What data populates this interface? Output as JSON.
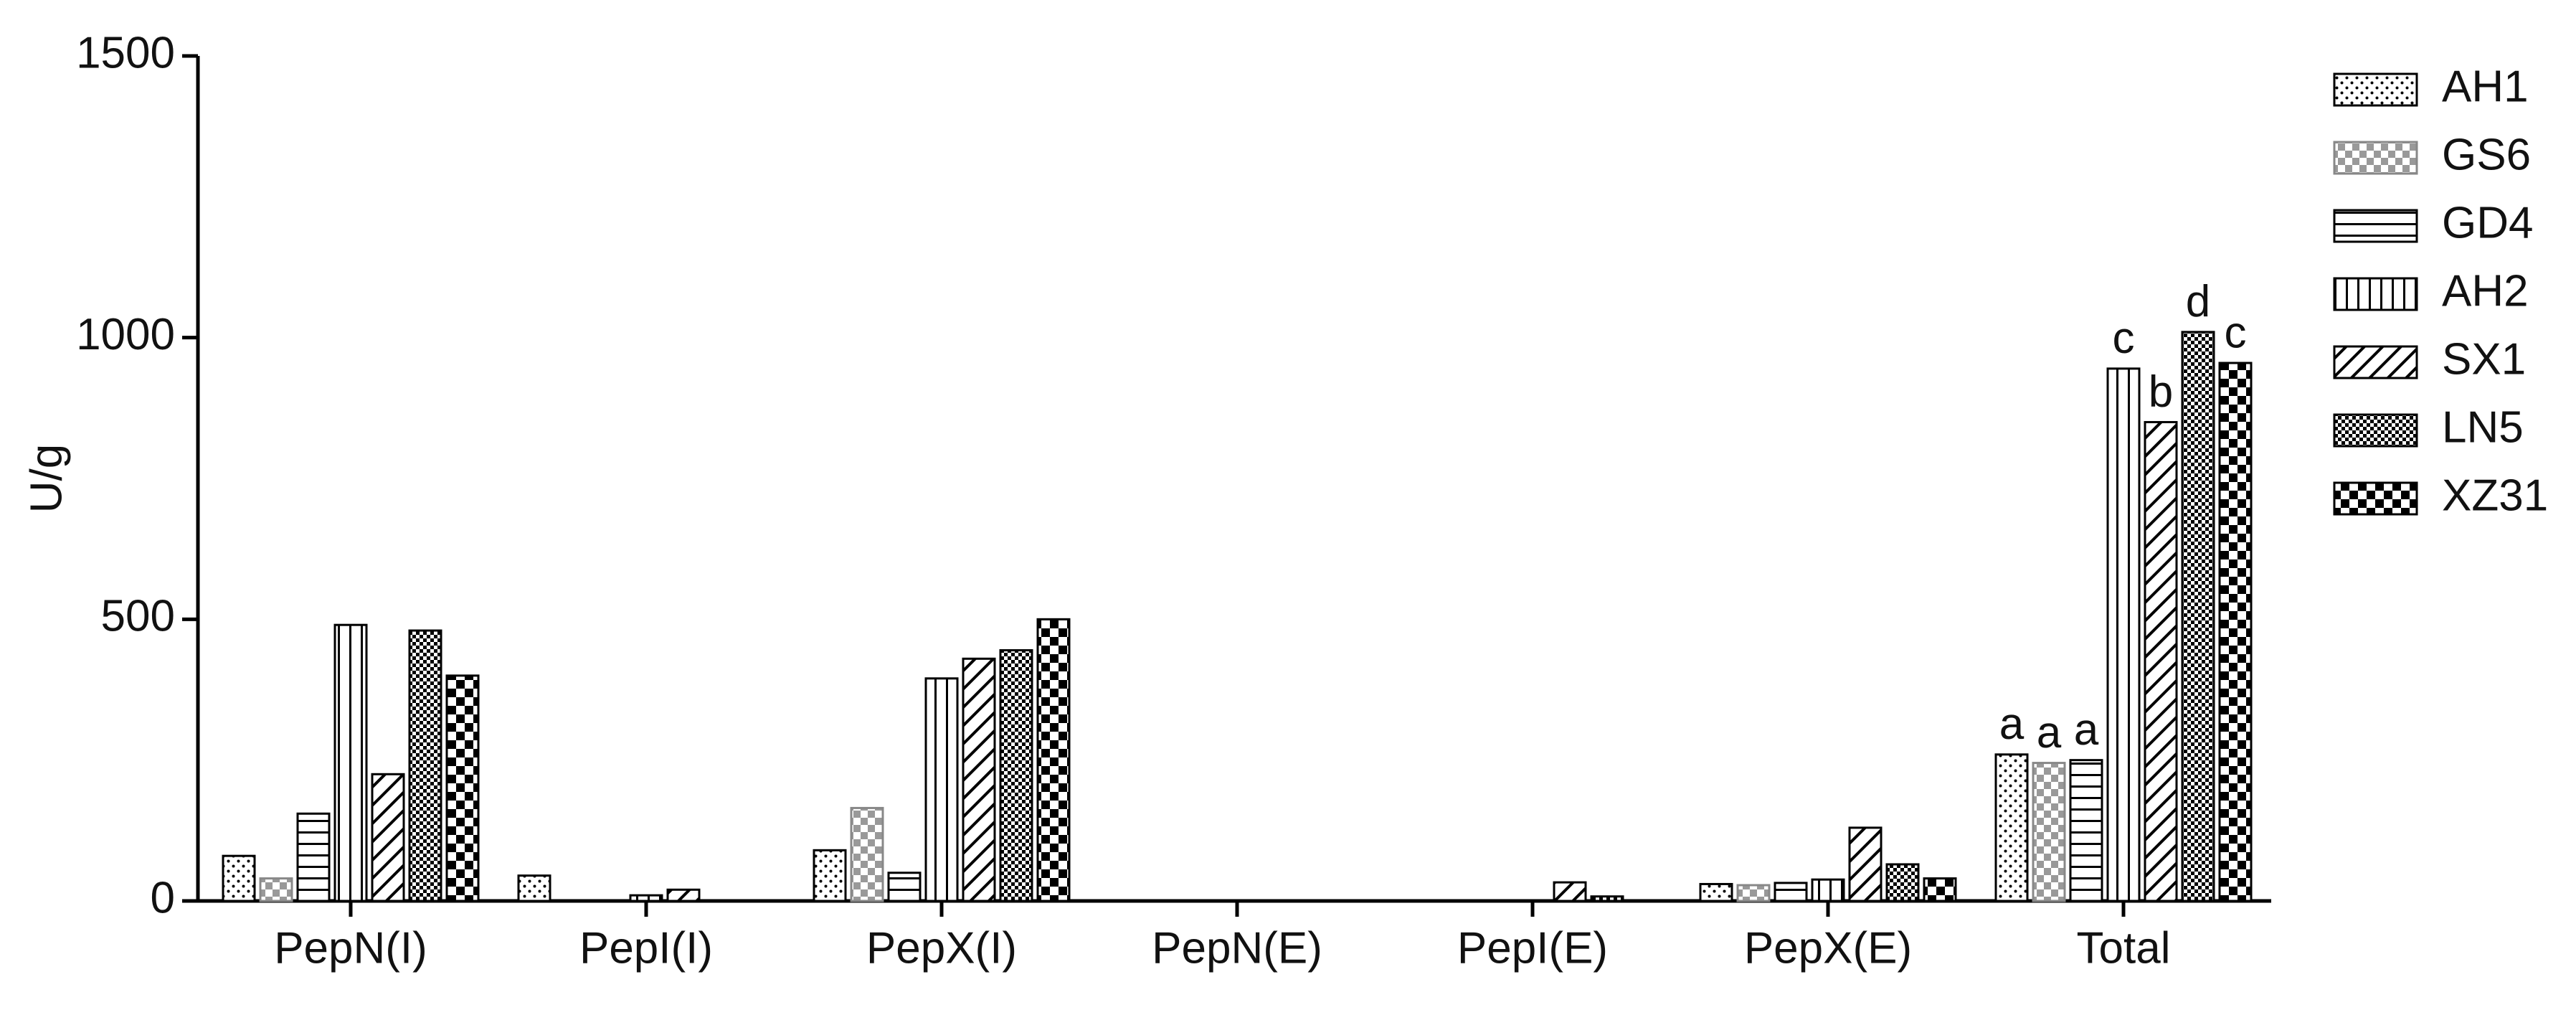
{
  "chart_data": {
    "type": "bar",
    "y_label": "U/g",
    "categories": [
      "PepN(I)",
      "PepI(I)",
      "PepX(I)",
      "PepN(E)",
      "PepI(E)",
      "PepX(E)",
      "Total"
    ],
    "series": [
      {
        "name": "AH1",
        "pattern": "dots",
        "color": "#000000",
        "values": [
          80,
          45,
          90,
          0,
          0,
          30,
          260
        ]
      },
      {
        "name": "GS6",
        "pattern": "checker",
        "color": "#888888",
        "values": [
          40,
          0,
          165,
          0,
          0,
          28,
          245
        ]
      },
      {
        "name": "GD4",
        "pattern": "hlines",
        "color": "#000000",
        "values": [
          155,
          0,
          50,
          0,
          0,
          32,
          250
        ]
      },
      {
        "name": "AH2",
        "pattern": "vlines",
        "color": "#000000",
        "values": [
          490,
          10,
          395,
          0,
          0,
          38,
          945
        ]
      },
      {
        "name": "SX1",
        "pattern": "diagonal",
        "color": "#000000",
        "values": [
          225,
          20,
          430,
          0,
          33,
          130,
          850
        ]
      },
      {
        "name": "LN5",
        "pattern": "finechecker",
        "color": "#000000",
        "values": [
          480,
          0,
          445,
          0,
          8,
          65,
          1010
        ]
      },
      {
        "name": "XZ31",
        "pattern": "bigchecker",
        "color": "#000000",
        "values": [
          400,
          0,
          500,
          0,
          0,
          40,
          955
        ]
      }
    ],
    "annotations": {
      "category": 6,
      "labels": [
        "a",
        "a",
        "a",
        "c",
        "b",
        "d",
        "c"
      ]
    },
    "ylim": [
      0,
      1500
    ],
    "yticks": [
      0,
      500,
      1000,
      1500
    ],
    "legend": "right"
  }
}
